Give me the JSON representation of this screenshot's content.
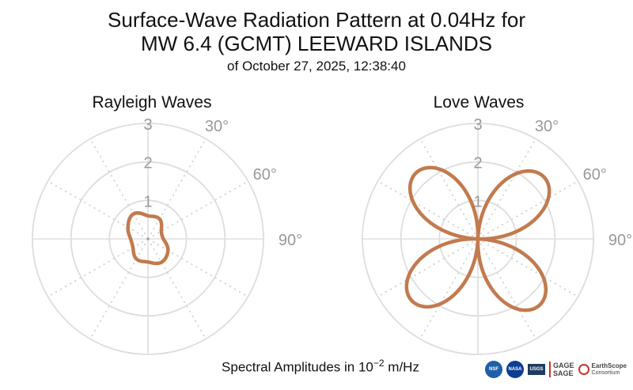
{
  "header": {
    "title_line1": "Surface-Wave Radiation Pattern at 0.04Hz for",
    "title_line2": "MW 6.4 (GCMT) LEEWARD ISLANDS",
    "subtitle": "of October 27, 2025, 12:38:40"
  },
  "footer": {
    "label_prefix": "Spectral Amplitudes in 10",
    "exponent": "−2",
    "label_suffix": " m/Hz"
  },
  "logos": {
    "nsf": "NSF",
    "nasa": "NASA",
    "usgs": "USGS",
    "gage_line1": "GAGE",
    "gage_line2": "SAGE",
    "earthscope_line1": "EarthScope",
    "earthscope_line2": "Consortium"
  },
  "colors": {
    "curve": "#c27a4e",
    "grid_solid": "#dddddd",
    "grid_dotted": "#cccccc",
    "tick_label": "#999999"
  },
  "chart_data": [
    {
      "type": "polar-line",
      "title": "Rayleigh Waves",
      "radial_ticks": [
        1,
        2,
        3
      ],
      "radial_max": 3,
      "angle_tick_labels": [
        "30°",
        "60°",
        "90°"
      ],
      "angle_ticks_deg": [
        30,
        60,
        90
      ],
      "angular_direction": "clockwise from north",
      "series": [
        {
          "theta_deg": [
            0,
            30,
            60,
            90,
            120,
            150,
            180,
            210,
            240,
            270,
            300,
            330
          ],
          "r": [
            0.6,
            0.6,
            0.4,
            0.4,
            0.6,
            0.7,
            0.6,
            0.6,
            0.45,
            0.45,
            0.6,
            0.75
          ]
        }
      ]
    },
    {
      "type": "polar-line",
      "title": "Love Waves",
      "radial_ticks": [
        1,
        2,
        3
      ],
      "radial_max": 3,
      "angle_tick_labels": [
        "30°",
        "60°",
        "90°"
      ],
      "angle_ticks_deg": [
        30,
        60,
        90
      ],
      "angular_direction": "clockwise from north",
      "series": [
        {
          "four_lobe_pattern": "|A*sin(2*(theta - phi))|",
          "A": 2.35,
          "phi_deg": 2
        }
      ]
    }
  ]
}
